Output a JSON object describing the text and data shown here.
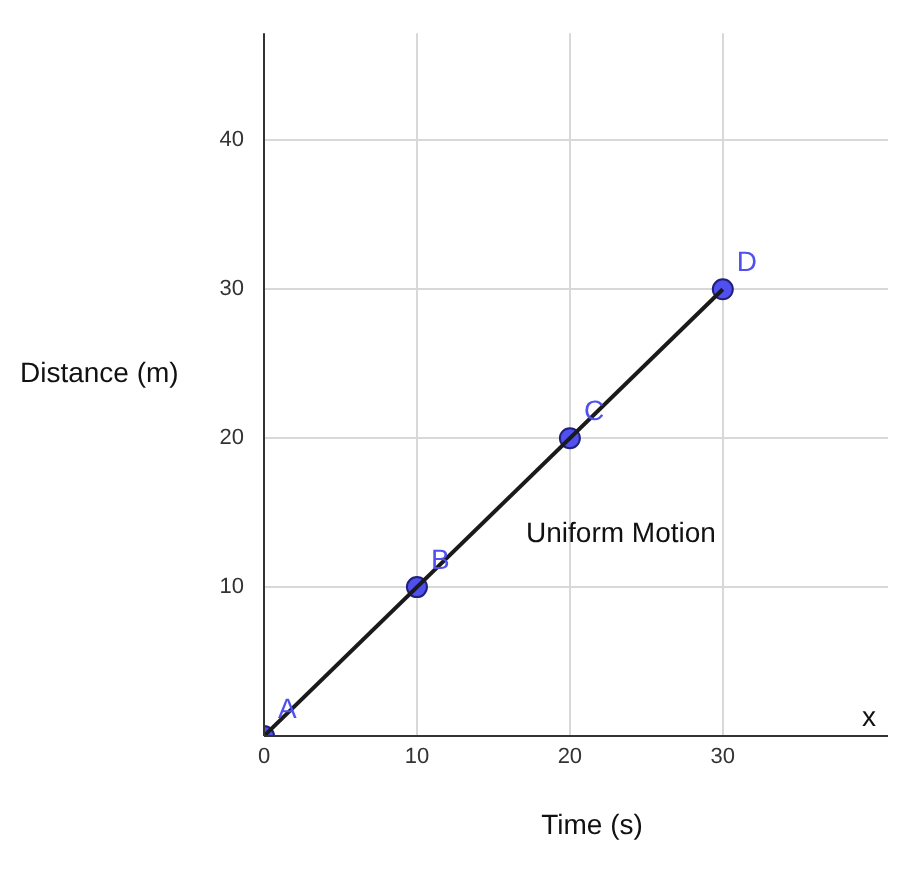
{
  "chart_data": {
    "type": "line",
    "xlabel": "Time (s)",
    "ylabel": "Distance (m)",
    "xlim": [
      0,
      40.8
    ],
    "ylim": [
      0,
      47.2
    ],
    "xticks": [
      0,
      10,
      20,
      30
    ],
    "yticks": [
      {
        "value": 0,
        "label": null
      },
      10,
      20,
      30,
      40
    ],
    "grid": true,
    "series": [
      {
        "color": "#1a1a1a",
        "x": [
          0,
          30
        ],
        "values": [
          0,
          30
        ],
        "marker": "none"
      },
      {
        "type": "scatter",
        "color": "#5050f0",
        "x": [
          0,
          10,
          20,
          30
        ],
        "values": [
          0,
          10,
          20,
          30
        ],
        "marker": "circle"
      }
    ],
    "annotations": [
      {
        "text": "A",
        "x": 0,
        "y": 0
      },
      {
        "text": "B",
        "x": 10,
        "y": 10
      },
      {
        "text": "C",
        "x": 20,
        "y": 20
      },
      {
        "text": "D",
        "x": 30,
        "y": 30
      },
      "Uniform Motion",
      "x"
    ]
  }
}
